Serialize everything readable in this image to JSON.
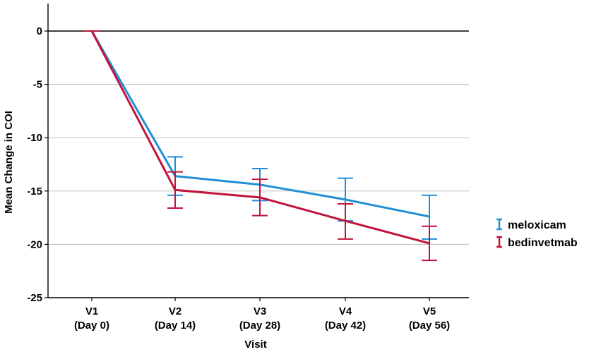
{
  "chart_data": {
    "type": "line",
    "title": "",
    "xlabel": "Visit",
    "ylabel": "Mean Change in COI",
    "categories": [
      [
        "V1",
        "(Day 0)"
      ],
      [
        "V2",
        "(Day 14)"
      ],
      [
        "V3",
        "(Day 28)"
      ],
      [
        "V4",
        "(Day 42)"
      ],
      [
        "V5",
        "(Day 56)"
      ]
    ],
    "ylim": [
      -25,
      2.5
    ],
    "yticks": [
      0,
      -5,
      -10,
      -15,
      -20,
      -25
    ],
    "ytick_labels": [
      "0",
      "-5",
      "-10",
      "-15",
      "-20",
      "-25"
    ],
    "grid": true,
    "legend_position": "right",
    "series": [
      {
        "name": "meloxicam",
        "color": "#1f8fd6",
        "values": [
          0,
          -13.6,
          -14.4,
          -15.8,
          -17.4
        ],
        "err_low": [
          0,
          -15.4,
          -15.9,
          -17.8,
          -19.5
        ],
        "err_high": [
          0,
          -11.8,
          -12.9,
          -13.8,
          -15.4
        ]
      },
      {
        "name": "bedinvetmab",
        "color": "#c0143c",
        "values": [
          0,
          -14.9,
          -15.6,
          -17.8,
          -19.9
        ],
        "err_low": [
          0,
          -16.6,
          -17.3,
          -19.5,
          -21.5
        ],
        "err_high": [
          0,
          -13.2,
          -13.9,
          -16.2,
          -18.3
        ]
      }
    ]
  }
}
